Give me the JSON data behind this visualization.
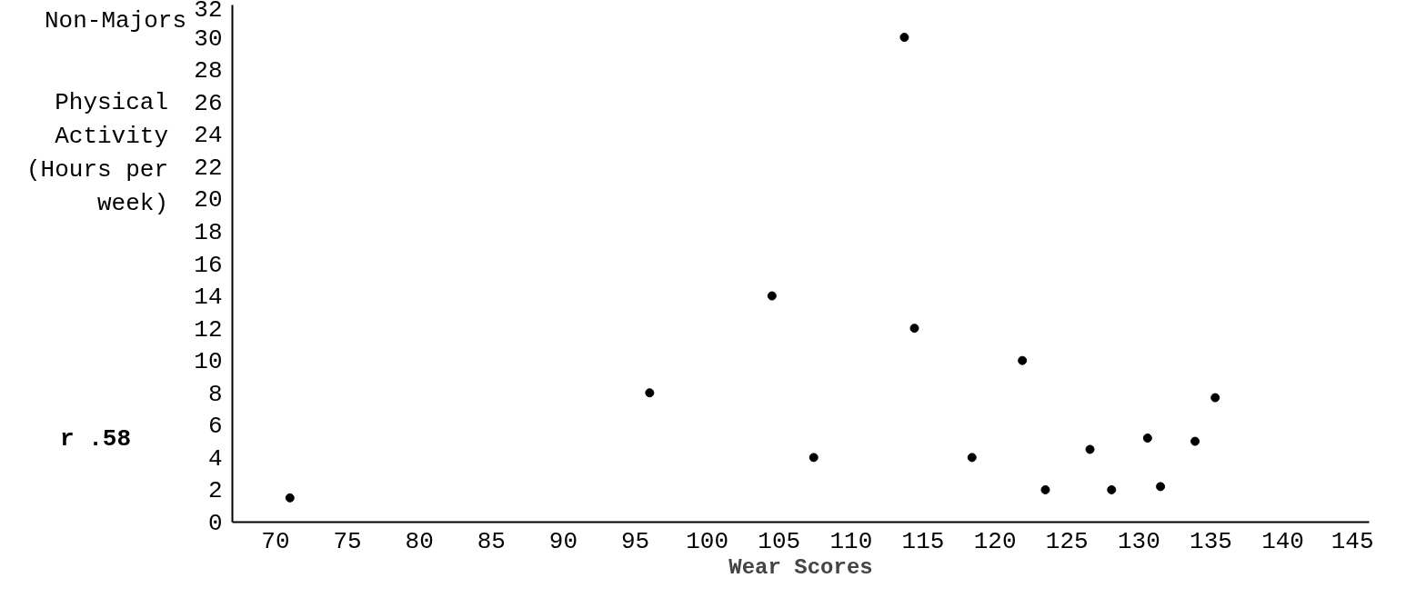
{
  "chart_data": {
    "type": "scatter",
    "title": "Non-Majors",
    "ylabel": "Physical Activity (Hours per week)",
    "xlabel": "Wear Scores",
    "annotations": [
      "r .58"
    ],
    "x": [
      71,
      96,
      104.5,
      107.4,
      113.7,
      114.4,
      118.4,
      121.9,
      123.5,
      126.6,
      128.1,
      130.6,
      131.5,
      133.9,
      135.3
    ],
    "series": [
      {
        "color": "#000000",
        "values": [
          1.5,
          8,
          14,
          4,
          30,
          12,
          4,
          10,
          2,
          4.5,
          2,
          5.2,
          2.2,
          5,
          7.7
        ]
      }
    ],
    "xlim": [
      67,
      146
    ],
    "xticks": [
      70,
      75,
      80,
      85,
      90,
      95,
      100,
      105,
      110,
      115,
      120,
      125,
      130,
      135,
      140,
      145
    ],
    "ylim": [
      0,
      32
    ],
    "yticks": [
      0,
      2,
      4,
      6,
      8,
      10,
      12,
      14,
      16,
      18,
      20,
      22,
      24,
      26,
      28,
      30,
      32
    ],
    "grid": false,
    "marker": "circle"
  }
}
